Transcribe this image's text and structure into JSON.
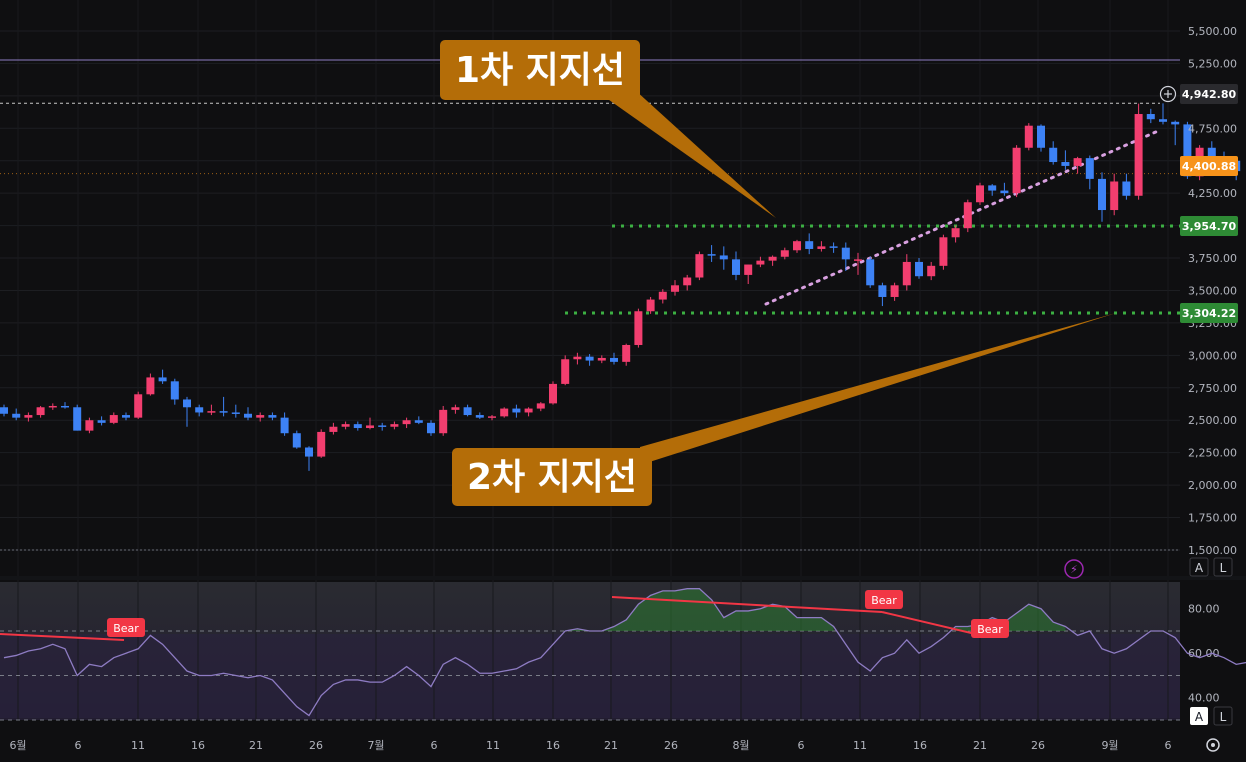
{
  "chart_data": [
    {
      "type": "candlestick",
      "y_ticks": [
        "5,500.00",
        "5,250.00",
        "5,000.00",
        "4,750.00",
        "4,500.00",
        "4,250.00",
        "4,000.00",
        "3,750.00",
        "3,500.00",
        "3,250.00",
        "3,000.00",
        "2,750.00",
        "2,500.00",
        "2,250.00",
        "2,000.00",
        "1,750.00",
        "1,500.00"
      ],
      "x_ticks": [
        "6월",
        "6",
        "11",
        "16",
        "21",
        "26",
        "7월",
        "6",
        "11",
        "16",
        "21",
        "26",
        "8월",
        "6",
        "11",
        "16",
        "21",
        "26",
        "9월",
        "6"
      ],
      "ylim": [
        1500,
        5600
      ],
      "price_badges": {
        "top_line": "4,942.80",
        "last_price": "4,400.88",
        "support1": "3,954.70",
        "support2": "3,304.22"
      },
      "annotations": {
        "support1_label": "1차 지지선",
        "support2_label": "2차 지지선"
      },
      "candles": [
        [
          2600,
          2620,
          2530,
          2550
        ],
        [
          2550,
          2590,
          2500,
          2520
        ],
        [
          2520,
          2560,
          2490,
          2540
        ],
        [
          2540,
          2610,
          2520,
          2600
        ],
        [
          2600,
          2630,
          2580,
          2610
        ],
        [
          2610,
          2640,
          2590,
          2600
        ],
        [
          2600,
          2620,
          2420,
          2420
        ],
        [
          2420,
          2520,
          2400,
          2500
        ],
        [
          2500,
          2530,
          2460,
          2480
        ],
        [
          2480,
          2560,
          2470,
          2540
        ],
        [
          2540,
          2560,
          2500,
          2520
        ],
        [
          2520,
          2720,
          2510,
          2700
        ],
        [
          2700,
          2860,
          2690,
          2830
        ],
        [
          2830,
          2890,
          2780,
          2800
        ],
        [
          2800,
          2820,
          2620,
          2660
        ],
        [
          2660,
          2680,
          2450,
          2600
        ],
        [
          2600,
          2620,
          2530,
          2560
        ],
        [
          2560,
          2620,
          2540,
          2570
        ],
        [
          2570,
          2680,
          2530,
          2560
        ],
        [
          2560,
          2620,
          2520,
          2550
        ],
        [
          2550,
          2600,
          2500,
          2520
        ],
        [
          2520,
          2560,
          2490,
          2540
        ],
        [
          2540,
          2560,
          2500,
          2520
        ],
        [
          2520,
          2560,
          2380,
          2400
        ],
        [
          2400,
          2420,
          2280,
          2290
        ],
        [
          2290,
          2300,
          2110,
          2220
        ],
        [
          2220,
          2430,
          2210,
          2410
        ],
        [
          2410,
          2480,
          2390,
          2450
        ],
        [
          2450,
          2490,
          2430,
          2470
        ],
        [
          2470,
          2490,
          2420,
          2440
        ],
        [
          2440,
          2520,
          2430,
          2460
        ],
        [
          2460,
          2480,
          2420,
          2450
        ],
        [
          2450,
          2490,
          2430,
          2470
        ],
        [
          2470,
          2520,
          2440,
          2500
        ],
        [
          2500,
          2530,
          2470,
          2480
        ],
        [
          2480,
          2500,
          2380,
          2400
        ],
        [
          2400,
          2610,
          2380,
          2580
        ],
        [
          2580,
          2620,
          2550,
          2600
        ],
        [
          2600,
          2620,
          2530,
          2540
        ],
        [
          2540,
          2560,
          2510,
          2520
        ],
        [
          2520,
          2540,
          2500,
          2530
        ],
        [
          2530,
          2600,
          2520,
          2590
        ],
        [
          2590,
          2620,
          2520,
          2560
        ],
        [
          2560,
          2600,
          2530,
          2590
        ],
        [
          2590,
          2640,
          2570,
          2630
        ],
        [
          2630,
          2800,
          2620,
          2780
        ],
        [
          2780,
          3000,
          2770,
          2970
        ],
        [
          2970,
          3020,
          2930,
          2990
        ],
        [
          2990,
          3010,
          2920,
          2960
        ],
        [
          2960,
          3000,
          2940,
          2980
        ],
        [
          2980,
          3020,
          2930,
          2950
        ],
        [
          2950,
          3090,
          2920,
          3080
        ],
        [
          3080,
          3360,
          3060,
          3340
        ],
        [
          3340,
          3450,
          3320,
          3430
        ],
        [
          3430,
          3510,
          3400,
          3490
        ],
        [
          3490,
          3580,
          3460,
          3540
        ],
        [
          3540,
          3620,
          3500,
          3600
        ],
        [
          3600,
          3800,
          3580,
          3780
        ],
        [
          3780,
          3850,
          3720,
          3770
        ],
        [
          3770,
          3840,
          3660,
          3740
        ],
        [
          3740,
          3800,
          3580,
          3620
        ],
        [
          3620,
          3700,
          3550,
          3700
        ],
        [
          3700,
          3760,
          3680,
          3730
        ],
        [
          3730,
          3770,
          3690,
          3760
        ],
        [
          3760,
          3830,
          3740,
          3810
        ],
        [
          3810,
          3890,
          3790,
          3880
        ],
        [
          3880,
          3940,
          3780,
          3820
        ],
        [
          3820,
          3880,
          3800,
          3840
        ],
        [
          3840,
          3870,
          3790,
          3830
        ],
        [
          3830,
          3870,
          3650,
          3740
        ],
        [
          3740,
          3790,
          3620,
          3740
        ],
        [
          3740,
          3760,
          3520,
          3540
        ],
        [
          3540,
          3560,
          3380,
          3450
        ],
        [
          3450,
          3560,
          3420,
          3540
        ],
        [
          3540,
          3780,
          3500,
          3720
        ],
        [
          3720,
          3750,
          3590,
          3610
        ],
        [
          3610,
          3720,
          3580,
          3690
        ],
        [
          3690,
          3930,
          3660,
          3910
        ],
        [
          3910,
          4000,
          3870,
          3980
        ],
        [
          3980,
          4200,
          3950,
          4180
        ],
        [
          4180,
          4330,
          4160,
          4310
        ],
        [
          4310,
          4320,
          4230,
          4270
        ],
        [
          4270,
          4330,
          4230,
          4250
        ],
        [
          4250,
          4620,
          4220,
          4600
        ],
        [
          4600,
          4790,
          4580,
          4770
        ],
        [
          4770,
          4780,
          4570,
          4600
        ],
        [
          4600,
          4650,
          4470,
          4490
        ],
        [
          4490,
          4580,
          4430,
          4460
        ],
        [
          4460,
          4530,
          4400,
          4520
        ],
        [
          4520,
          4540,
          4280,
          4360
        ],
        [
          4360,
          4410,
          4030,
          4120
        ],
        [
          4120,
          4400,
          4080,
          4340
        ],
        [
          4340,
          4400,
          4200,
          4230
        ],
        [
          4230,
          4940,
          4200,
          4860
        ],
        [
          4860,
          4900,
          4790,
          4820
        ],
        [
          4820,
          4942,
          4780,
          4800
        ],
        [
          4800,
          4810,
          4620,
          4780
        ],
        [
          4780,
          4800,
          4360,
          4380
        ],
        [
          4380,
          4620,
          4350,
          4600
        ],
        [
          4600,
          4650,
          4490,
          4520
        ],
        [
          4520,
          4570,
          4460,
          4500
        ],
        [
          4500,
          4520,
          4350,
          4420
        ]
      ]
    },
    {
      "type": "line",
      "y_ticks": [
        "80.00",
        "60.00",
        "40.00"
      ],
      "ylim": [
        30,
        92
      ],
      "levels": [
        70,
        50,
        30
      ],
      "bear_label": "Bear",
      "values": [
        58,
        59,
        61,
        62,
        64,
        62,
        50,
        55,
        54,
        58,
        60,
        62,
        68,
        64,
        58,
        52,
        50,
        50,
        51,
        50,
        49,
        50,
        48,
        42,
        36,
        32,
        41,
        46,
        48,
        48,
        47,
        47,
        50,
        54,
        50,
        45,
        55,
        58,
        55,
        51,
        51,
        52,
        53,
        56,
        58,
        64,
        70,
        71,
        70,
        70,
        72,
        75,
        82,
        86,
        88,
        88,
        89,
        89,
        84,
        76,
        79,
        79,
        80,
        82,
        81,
        76,
        76,
        76,
        72,
        64,
        56,
        52,
        58,
        60,
        66,
        60,
        63,
        67,
        72,
        72,
        73,
        76,
        74,
        78,
        82,
        80,
        74,
        72,
        68,
        70,
        62,
        60,
        62,
        66,
        70,
        70,
        67,
        60,
        58,
        60,
        58,
        55,
        56
      ]
    }
  ],
  "ui": {
    "indicator_badge": "⚡",
    "auto_label": "A",
    "log_label": "L",
    "auto_label2": "A",
    "log_label2": "L",
    "settings_icon": "gear-icon",
    "add_icon": "plus-icon"
  }
}
